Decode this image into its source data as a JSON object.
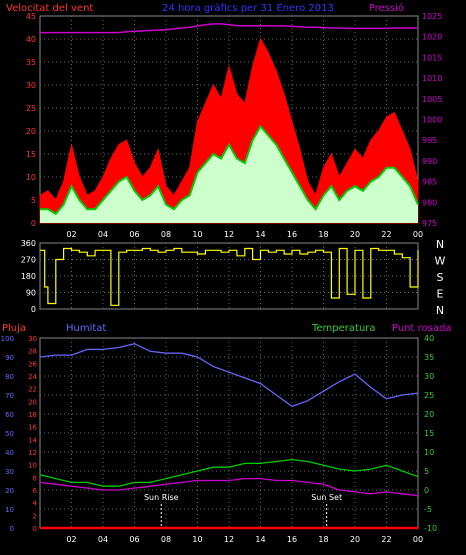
{
  "header": {
    "wind_label": "Velocitat del vent",
    "title": "24 hora gràfics per 31 Enero 2013",
    "pressure_label": "Pressió"
  },
  "labels": {
    "rain": "Pluja",
    "humidity": "Humitat",
    "temperature": "Temperatura",
    "dewpoint": "Punt rosada",
    "sunrise": "Sun Rise",
    "sunset": "Sun Set"
  },
  "compass": [
    "N",
    "W",
    "S",
    "E",
    "N"
  ],
  "colors": {
    "wind_gust": "#ff0000",
    "wind_avg": "#00cc00",
    "wind_fill": "#ccffcc",
    "pressure": "#cc00cc",
    "direction": "#ffff00",
    "humidity": "#6666ff",
    "temperature": "#00cc00",
    "dewpoint": "#cc00cc",
    "rain": "#ff0000",
    "axis_red": "#ff3333",
    "axis_magenta": "#cc00cc",
    "axis_green": "#33cc33",
    "axis_blue": "#6666ff"
  },
  "chart_data": [
    {
      "type": "area",
      "panel": "wind",
      "x_ticks": [
        "02",
        "04",
        "06",
        "08",
        "10",
        "12",
        "14",
        "16",
        "18",
        "20",
        "22",
        "00"
      ],
      "y_ticks": [
        "0",
        "5",
        "10",
        "15",
        "20",
        "25",
        "30",
        "35",
        "40",
        "45"
      ],
      "ylim": [
        0,
        45
      ],
      "y2_ticks": [
        "975",
        "980",
        "985",
        "990",
        "995",
        "1000",
        "1005",
        "1010",
        "1015",
        "1020",
        "1025"
      ],
      "y2lim": [
        975,
        1025
      ],
      "x": [
        0,
        0.5,
        1,
        1.5,
        2,
        2.5,
        3,
        3.5,
        4,
        4.5,
        5,
        5.5,
        6,
        6.5,
        7,
        7.5,
        8,
        8.5,
        9,
        9.5,
        10,
        10.5,
        11,
        11.5,
        12,
        12.5,
        13,
        13.5,
        14,
        14.5,
        15,
        15.5,
        16,
        16.5,
        17,
        17.5,
        18,
        18.5,
        19,
        19.5,
        20,
        20.5,
        21,
        21.5,
        22,
        22.5,
        23,
        23.5,
        24
      ],
      "series": [
        {
          "name": "gust",
          "values": [
            6,
            7,
            5,
            9,
            17,
            10,
            6,
            7,
            10,
            14,
            17,
            18,
            13,
            10,
            12,
            16,
            8,
            6,
            9,
            12,
            22,
            26,
            30,
            27,
            34,
            28,
            26,
            34,
            40,
            37,
            33,
            28,
            22,
            16,
            9,
            6,
            12,
            15,
            10,
            13,
            16,
            14,
            18,
            20,
            23,
            24,
            20,
            16,
            9
          ]
        },
        {
          "name": "average",
          "values": [
            3,
            3,
            2,
            4,
            8,
            5,
            3,
            3,
            5,
            7,
            9,
            10,
            7,
            5,
            6,
            8,
            4,
            3,
            5,
            6,
            11,
            13,
            15,
            14,
            17,
            14,
            13,
            18,
            21,
            19,
            17,
            14,
            11,
            8,
            5,
            3,
            6,
            8,
            5,
            7,
            8,
            7,
            9,
            10,
            12,
            12,
            10,
            8,
            4
          ]
        },
        {
          "name": "pressure",
          "values": [
            1021,
            1021,
            1021,
            1021,
            1021,
            1021,
            1021,
            1021,
            1021,
            1021,
            1021,
            1021.2,
            1021.3,
            1021.4,
            1021.5,
            1021.6,
            1021.7,
            1021.9,
            1022.1,
            1022.3,
            1022.6,
            1022.9,
            1023.1,
            1023.1,
            1022.9,
            1022.7,
            1022.6,
            1022.6,
            1022.6,
            1022.6,
            1022.6,
            1022.6,
            1022.5,
            1022.4,
            1022.3,
            1022.3,
            1022.2,
            1022.1,
            1022.1,
            1022,
            1022,
            1022,
            1022,
            1022,
            1022,
            1022.1,
            1022.1,
            1022.1,
            1022.1
          ]
        }
      ]
    },
    {
      "type": "line",
      "panel": "direction",
      "x_ticks": [
        "02",
        "04",
        "06",
        "08",
        "10",
        "12",
        "14",
        "16",
        "18",
        "20",
        "22",
        "00"
      ],
      "y_ticks": [
        "0",
        "90",
        "180",
        "270",
        "360"
      ],
      "ylim": [
        0,
        360
      ],
      "x": [
        0,
        0.3,
        0.5,
        1,
        1.5,
        2,
        2.5,
        3,
        3.5,
        4,
        4.5,
        5,
        5.5,
        6,
        6.5,
        7,
        7.5,
        8,
        8.5,
        9,
        9.5,
        10,
        10.5,
        11,
        11.5,
        12,
        12.5,
        13,
        13.5,
        14,
        14.5,
        15,
        15.5,
        16,
        16.5,
        17,
        17.5,
        18,
        18.5,
        19,
        19.5,
        20,
        20.5,
        21,
        21.5,
        22,
        22.5,
        23,
        23.5,
        24
      ],
      "values": [
        320,
        120,
        30,
        270,
        330,
        320,
        310,
        290,
        320,
        320,
        20,
        310,
        320,
        320,
        330,
        320,
        310,
        320,
        330,
        310,
        310,
        300,
        320,
        320,
        310,
        320,
        290,
        330,
        270,
        320,
        310,
        320,
        300,
        320,
        300,
        310,
        320,
        310,
        60,
        330,
        80,
        320,
        60,
        330,
        320,
        320,
        300,
        280,
        120,
        320
      ]
    },
    {
      "type": "line",
      "panel": "temperature",
      "x_ticks": [
        "02",
        "04",
        "06",
        "08",
        "10",
        "12",
        "14",
        "16",
        "18",
        "20",
        "22",
        "00"
      ],
      "y_ticks": [
        "0",
        "10",
        "20",
        "30",
        "40",
        "50",
        "60",
        "70",
        "80",
        "90",
        "100"
      ],
      "ylim": [
        0,
        100
      ],
      "y_inner_ticks": [
        "0",
        "2",
        "4",
        "6",
        "8",
        "10",
        "12",
        "14",
        "16",
        "18",
        "20",
        "22",
        "24",
        "26",
        "28",
        "30"
      ],
      "y_inner_lim": [
        0,
        30
      ],
      "y2_ticks": [
        "-10",
        "-5",
        "0",
        "5",
        "10",
        "15",
        "20",
        "25",
        "30",
        "35",
        "40"
      ],
      "y2lim": [
        -10,
        40
      ],
      "x": [
        0,
        1,
        2,
        3,
        4,
        5,
        6,
        7,
        8,
        9,
        10,
        11,
        12,
        13,
        14,
        15,
        16,
        17,
        18,
        19,
        20,
        21,
        22,
        23,
        24
      ],
      "series": [
        {
          "name": "Humitat",
          "values": [
            90,
            91,
            91,
            94,
            94,
            95,
            97,
            93,
            92,
            92,
            90,
            85,
            82,
            79,
            76,
            70,
            64,
            67,
            72,
            77,
            81,
            74,
            68,
            70,
            71
          ]
        },
        {
          "name": "Temperatura",
          "values": [
            4,
            3,
            2,
            2,
            1,
            1,
            2,
            2,
            3,
            4,
            5,
            6,
            6,
            7,
            7,
            7.5,
            8,
            7.5,
            6.5,
            5.5,
            5,
            5.5,
            6.5,
            5,
            3.5
          ]
        },
        {
          "name": "Punt rosada",
          "values": [
            2,
            1.5,
            1,
            0.5,
            0,
            0,
            0.5,
            1,
            1.5,
            2,
            2.5,
            2.5,
            2.5,
            3,
            3,
            2.5,
            2.5,
            2,
            1.5,
            0,
            -0.5,
            -1,
            -0.5,
            -1,
            -1.5
          ]
        },
        {
          "name": "Pluja",
          "values": [
            0,
            0,
            0,
            0,
            0,
            0,
            0,
            0,
            0,
            0,
            0,
            0,
            0,
            0,
            0,
            0,
            0,
            0,
            0,
            0,
            0,
            0,
            0,
            0,
            0
          ]
        }
      ],
      "annotations": [
        {
          "label": "Sun Rise",
          "x": 7.7
        },
        {
          "label": "Sun Set",
          "x": 18.2
        }
      ]
    }
  ]
}
